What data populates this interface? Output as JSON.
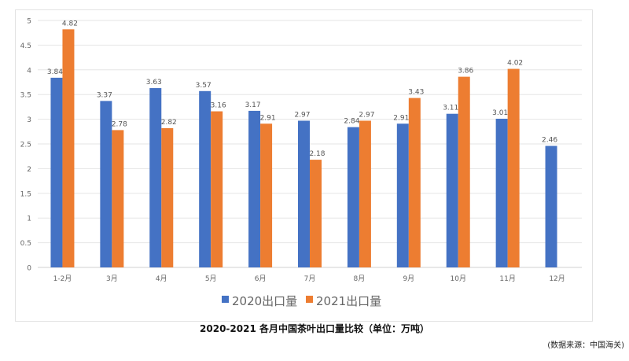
{
  "chart_data": {
    "type": "bar",
    "title": "2020-2021 各月中国茶叶出口量比较（单位：万吨）",
    "source": "(数据来源：中国海关)",
    "categories": [
      "1-2月",
      "3月",
      "4月",
      "5月",
      "6月",
      "7月",
      "8月",
      "9月",
      "10月",
      "11月",
      "12月"
    ],
    "series": [
      {
        "name": "2020出口量",
        "color": "#4472C4",
        "values": [
          3.84,
          3.37,
          3.63,
          3.57,
          3.17,
          2.97,
          2.84,
          2.91,
          3.11,
          3.01,
          2.46
        ]
      },
      {
        "name": "2021出口量",
        "color": "#ED7D31",
        "values": [
          4.82,
          2.78,
          2.82,
          3.16,
          2.91,
          2.18,
          2.97,
          3.43,
          3.86,
          4.02,
          null
        ]
      }
    ],
    "ylim": [
      0,
      5
    ],
    "yticks": [
      "0",
      "0.5",
      "1",
      "1.5",
      "2",
      "2.5",
      "3",
      "3.5",
      "4",
      "4.5",
      "5"
    ],
    "grid": true,
    "legend": "bottom"
  }
}
